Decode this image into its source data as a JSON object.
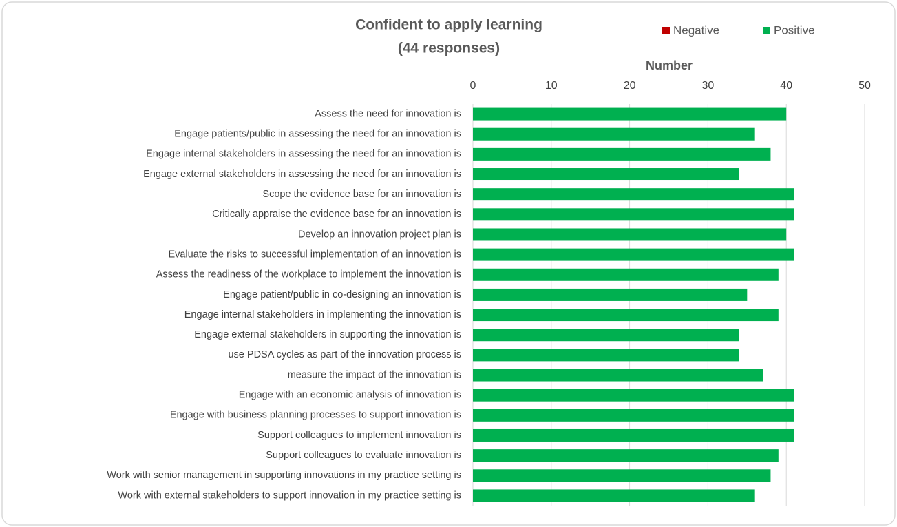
{
  "chart_data": {
    "type": "stacked-barh",
    "title": "Confident to apply learning",
    "subtitle": "(44 responses)",
    "xlabel": "Number",
    "categories": [
      "Assess the need for innovation is",
      "Engage patients/public in assessing the need for an innovation is",
      "Engage internal stakeholders in assessing the need for an innovation is",
      "Engage external stakeholders in assessing the need for an innovation is",
      "Scope the evidence base for an innovation is",
      "Critically appraise the evidence base for an innovation is",
      "Develop an innovation project plan is",
      "Evaluate the risks to successful implementation of an innovation is",
      "Assess the readiness of the workplace to implement the innovation is",
      "Engage patient/public in co-designing an innovation is",
      "Engage internal stakeholders in implementing the innovation is",
      "Engage external stakeholders in supporting the innovation is",
      "use PDSA cycles as part of the innovation process is",
      "measure the impact of the innovation is",
      "Engage with an economic analysis of innovation is",
      "Engage with business planning processes to support innovation is",
      "Support colleagues to implement innovation is",
      "Support colleagues to evaluate innovation is",
      "Work with senior management in supporting innovations in my practice setting is",
      "Work with external stakeholders to support innovation in my practice setting is"
    ],
    "series": [
      {
        "name": "Negative",
        "color": "#c00000",
        "values": [
          0,
          0,
          0,
          0,
          0,
          0,
          0,
          0,
          0,
          0,
          0,
          0,
          0,
          0,
          0,
          0,
          0,
          0,
          0,
          0
        ]
      },
      {
        "name": "Positive",
        "color": "#00b050",
        "values": [
          40,
          36,
          38,
          34,
          41,
          41,
          40,
          41,
          39,
          35,
          39,
          34,
          34,
          37,
          41,
          41,
          41,
          39,
          38,
          36
        ]
      }
    ],
    "xlim": [
      0,
      50
    ],
    "xticks": [
      0,
      10,
      20,
      30,
      40,
      50
    ],
    "grid": true,
    "legend": "top-right"
  }
}
